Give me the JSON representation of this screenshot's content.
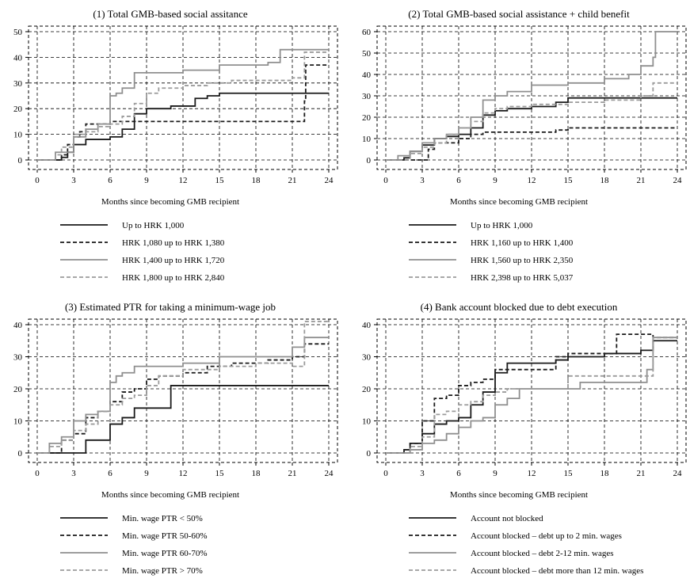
{
  "colors": {
    "dark": "#1a1a1a",
    "light": "#8f8f8f",
    "lighter": "#9b9b9b",
    "grid": "#000000",
    "frame": "#000000"
  },
  "chart_data": [
    {
      "type": "line",
      "title": "(1) Total GMB-based social assitance",
      "xlabel": "Months since becoming GMB recipient",
      "ylabel": "",
      "xlim": [
        0,
        24
      ],
      "ylim": [
        0,
        50
      ],
      "xticks": [
        "0",
        "3",
        "6",
        "9",
        "12",
        "15",
        "18",
        "21",
        "24"
      ],
      "yticks": [
        "0",
        "10",
        "20",
        "30",
        "40",
        "50"
      ],
      "series": [
        {
          "name": "Up to HRK 1,000",
          "style": "dark-solid",
          "x": [
            0,
            1.5,
            2,
            2.5,
            3,
            4,
            6,
            6.5,
            7,
            8,
            9,
            10,
            11,
            12,
            13,
            14,
            15,
            24
          ],
          "y": [
            0,
            0,
            1,
            3,
            6,
            8,
            9,
            9,
            12,
            18,
            20,
            20,
            21,
            21,
            24,
            25,
            26,
            26
          ]
        },
        {
          "name": "HRK 1,080 up to HRK 1,380",
          "style": "dark-dashed",
          "x": [
            0,
            2,
            2.5,
            3,
            3.5,
            4,
            6,
            7,
            8,
            9,
            21,
            22,
            22.1,
            24
          ],
          "y": [
            0,
            2,
            6,
            9,
            11,
            14,
            15,
            15,
            15,
            15,
            15,
            23,
            37,
            37
          ]
        },
        {
          "name": "HRK 1,400 up to HRK 1,720",
          "style": "light-solid",
          "x": [
            0,
            1.5,
            3,
            4,
            5,
            6,
            6.5,
            7,
            8,
            9,
            12,
            15,
            19,
            20,
            24
          ],
          "y": [
            0,
            3,
            9,
            12,
            14,
            25,
            26,
            28,
            34,
            34,
            35,
            37,
            38,
            43,
            43
          ]
        },
        {
          "name": "HRK 1,800 up to HRK 2,840",
          "style": "light-dashed",
          "x": [
            0,
            1.5,
            2,
            3,
            4,
            5,
            6,
            7,
            8,
            9,
            10,
            12,
            14,
            16,
            21,
            22,
            24
          ],
          "y": [
            0,
            2,
            5,
            10,
            11,
            13,
            14,
            17,
            22,
            26,
            28,
            29,
            30,
            31,
            32,
            42,
            42
          ]
        }
      ]
    },
    {
      "type": "line",
      "title": "(2) Total GMB-based social assistance + child benefit",
      "xlabel": "Months since becoming GMB recipient",
      "ylabel": "",
      "xlim": [
        0,
        24
      ],
      "ylim": [
        0,
        60
      ],
      "xticks": [
        "0",
        "3",
        "6",
        "9",
        "12",
        "15",
        "18",
        "21",
        "24"
      ],
      "yticks": [
        "0",
        "10",
        "20",
        "30",
        "40",
        "50",
        "60"
      ],
      "series": [
        {
          "name": "Up to HRK 1,000",
          "style": "dark-solid",
          "x": [
            0,
            1.5,
            2,
            3,
            4,
            5,
            6,
            7,
            8,
            9,
            10,
            12,
            14,
            15,
            24
          ],
          "y": [
            0,
            1,
            4,
            7,
            10,
            11,
            12,
            15,
            21,
            23,
            24,
            25,
            27,
            29,
            29
          ]
        },
        {
          "name": "HRK 1,160 up to HRK 1,400",
          "style": "dark-dashed",
          "x": [
            0,
            3,
            3.5,
            4,
            6,
            7,
            8,
            13,
            14,
            15,
            24
          ],
          "y": [
            0,
            0,
            5,
            8,
            10,
            12,
            13,
            13,
            14,
            15,
            15
          ]
        },
        {
          "name": "HRK 1,560 up to HRK 2,350",
          "style": "light-solid",
          "x": [
            0,
            1,
            2,
            3,
            4,
            5,
            6,
            7,
            8,
            9,
            10,
            12,
            15,
            18,
            20,
            21,
            22,
            22.2,
            24
          ],
          "y": [
            0,
            2,
            4,
            8,
            10,
            12,
            15,
            20,
            28,
            30,
            32,
            35,
            36,
            38,
            40,
            44,
            48,
            60,
            60
          ]
        },
        {
          "name": "HRK 2,398 up to HRK 5,037",
          "style": "light-dashed",
          "x": [
            0,
            2,
            3,
            4,
            5,
            6,
            7,
            8,
            9,
            10,
            12,
            15,
            18,
            21,
            22,
            24
          ],
          "y": [
            0,
            3,
            6,
            8,
            12,
            15,
            18,
            22,
            24,
            25,
            26,
            27,
            28,
            30,
            36,
            36
          ]
        }
      ]
    },
    {
      "type": "line",
      "title": "(3) Estimated PTR for taking a minimum-wage job",
      "xlabel": "Months since becoming GMB recipient",
      "ylabel": "",
      "xlim": [
        0,
        24
      ],
      "ylim": [
        0,
        40
      ],
      "xticks": [
        "0",
        "3",
        "6",
        "9",
        "12",
        "15",
        "18",
        "21",
        "24"
      ],
      "yticks": [
        "0",
        "10",
        "20",
        "30",
        "40"
      ],
      "series": [
        {
          "name": "Min. wage PTR < 50%",
          "style": "dark-solid",
          "x": [
            0,
            3,
            4,
            5,
            6,
            7,
            8,
            9,
            11,
            24
          ],
          "y": [
            0,
            0,
            4,
            4,
            9,
            11,
            14,
            14,
            21,
            21
          ]
        },
        {
          "name": "Min. wage PTR 50-60%",
          "style": "dark-dashed",
          "x": [
            0,
            2,
            3,
            4,
            5,
            6,
            7,
            8,
            9,
            10,
            12,
            14,
            16,
            19,
            21,
            22,
            24
          ],
          "y": [
            0,
            4,
            6,
            11,
            13,
            16,
            19,
            20,
            23,
            24,
            25,
            27,
            28,
            29,
            30,
            34,
            34
          ]
        },
        {
          "name": "Min. wage PTR 60-70%",
          "style": "light-solid",
          "x": [
            0,
            1,
            2,
            3,
            4,
            5,
            6,
            6.5,
            7,
            8,
            12,
            15,
            18,
            21,
            22,
            24
          ],
          "y": [
            0,
            3,
            5,
            10,
            12,
            13,
            22,
            24,
            25,
            27,
            28,
            30,
            30,
            33,
            36,
            36
          ]
        },
        {
          "name": "Min. wage PTR > 70%",
          "style": "light-dashed",
          "x": [
            0,
            1,
            2,
            3,
            4,
            5,
            6,
            7,
            8,
            9,
            10,
            12,
            15,
            18,
            21,
            22,
            24
          ],
          "y": [
            0,
            2,
            4,
            7,
            9,
            13,
            15,
            17,
            18,
            21,
            24,
            26,
            27,
            28,
            27,
            41,
            41
          ]
        }
      ]
    },
    {
      "type": "line",
      "title": "(4) Bank account blocked due to debt execution",
      "xlabel": "Months since becoming GMB recipient",
      "ylabel": "",
      "xlim": [
        0,
        24
      ],
      "ylim": [
        0,
        40
      ],
      "xticks": [
        "0",
        "3",
        "6",
        "9",
        "12",
        "15",
        "18",
        "21",
        "24"
      ],
      "yticks": [
        "0",
        "10",
        "20",
        "30",
        "40"
      ],
      "series": [
        {
          "name": "Account not blocked",
          "style": "dark-solid",
          "x": [
            0,
            1.5,
            2,
            3,
            4,
            5,
            6,
            7,
            8,
            9,
            10,
            12,
            14,
            15,
            18,
            21,
            22,
            24
          ],
          "y": [
            0,
            1,
            3,
            6,
            9,
            10,
            11,
            15,
            19,
            25,
            28,
            28,
            29,
            30,
            31,
            32,
            35,
            35
          ]
        },
        {
          "name": "Account blocked – debt up to 2 min. wages",
          "style": "dark-dashed",
          "x": [
            0,
            2,
            3,
            4,
            5,
            6,
            7,
            8,
            9,
            13,
            14,
            15,
            18,
            19,
            21,
            22,
            24
          ],
          "y": [
            0,
            3,
            10,
            17,
            18,
            21,
            22,
            23,
            26,
            26,
            30,
            31,
            31,
            37,
            37,
            36,
            36
          ]
        },
        {
          "name": "Account blocked – debt 2-12 min. wages",
          "style": "light-solid",
          "x": [
            0,
            2,
            3,
            4,
            5,
            6,
            7,
            8,
            9,
            10,
            11,
            15,
            16,
            21,
            21.5,
            22,
            24
          ],
          "y": [
            0,
            1,
            3,
            4,
            6,
            8,
            10,
            11,
            15,
            17,
            20,
            20,
            22,
            22,
            26,
            36,
            36
          ]
        },
        {
          "name": "Account blocked – debt more than 12 min. wages",
          "style": "light-dashed",
          "x": [
            0,
            2,
            3,
            4,
            5,
            6,
            7,
            8,
            9,
            10,
            12,
            15,
            18,
            21,
            22,
            24
          ],
          "y": [
            0,
            2,
            5,
            12,
            13,
            15,
            16,
            18,
            19,
            20,
            20,
            24,
            24,
            24,
            36,
            36
          ]
        }
      ]
    }
  ]
}
